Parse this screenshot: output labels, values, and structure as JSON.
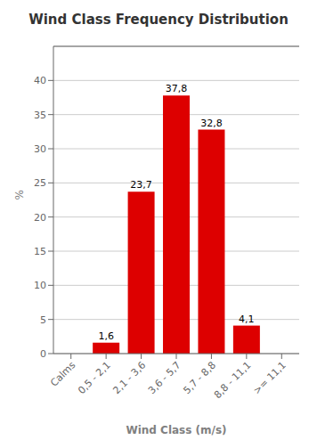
{
  "chart_data": {
    "type": "bar",
    "title": "Wind Class Frequency Distribution",
    "categories": [
      "Calms",
      "0,5 - 2,1",
      "2,1 - 3,6",
      "3,6 - 5,7",
      "5,7 - 8,8",
      "8,8 - 11,1",
      ">= 11,1"
    ],
    "values": [
      0.0,
      1.6,
      23.7,
      37.8,
      32.8,
      4.1,
      0.0
    ],
    "value_labels": [
      null,
      "1,6",
      "23,7",
      "37,8",
      "32,8",
      "4,1",
      null
    ],
    "color": "#dd0000",
    "xlabel": "Wind Class (m/s)",
    "ylabel": "%",
    "ylim": [
      0,
      45
    ],
    "yticks": [
      0,
      5,
      10,
      15,
      20,
      25,
      30,
      35,
      40
    ],
    "grid": true
  }
}
